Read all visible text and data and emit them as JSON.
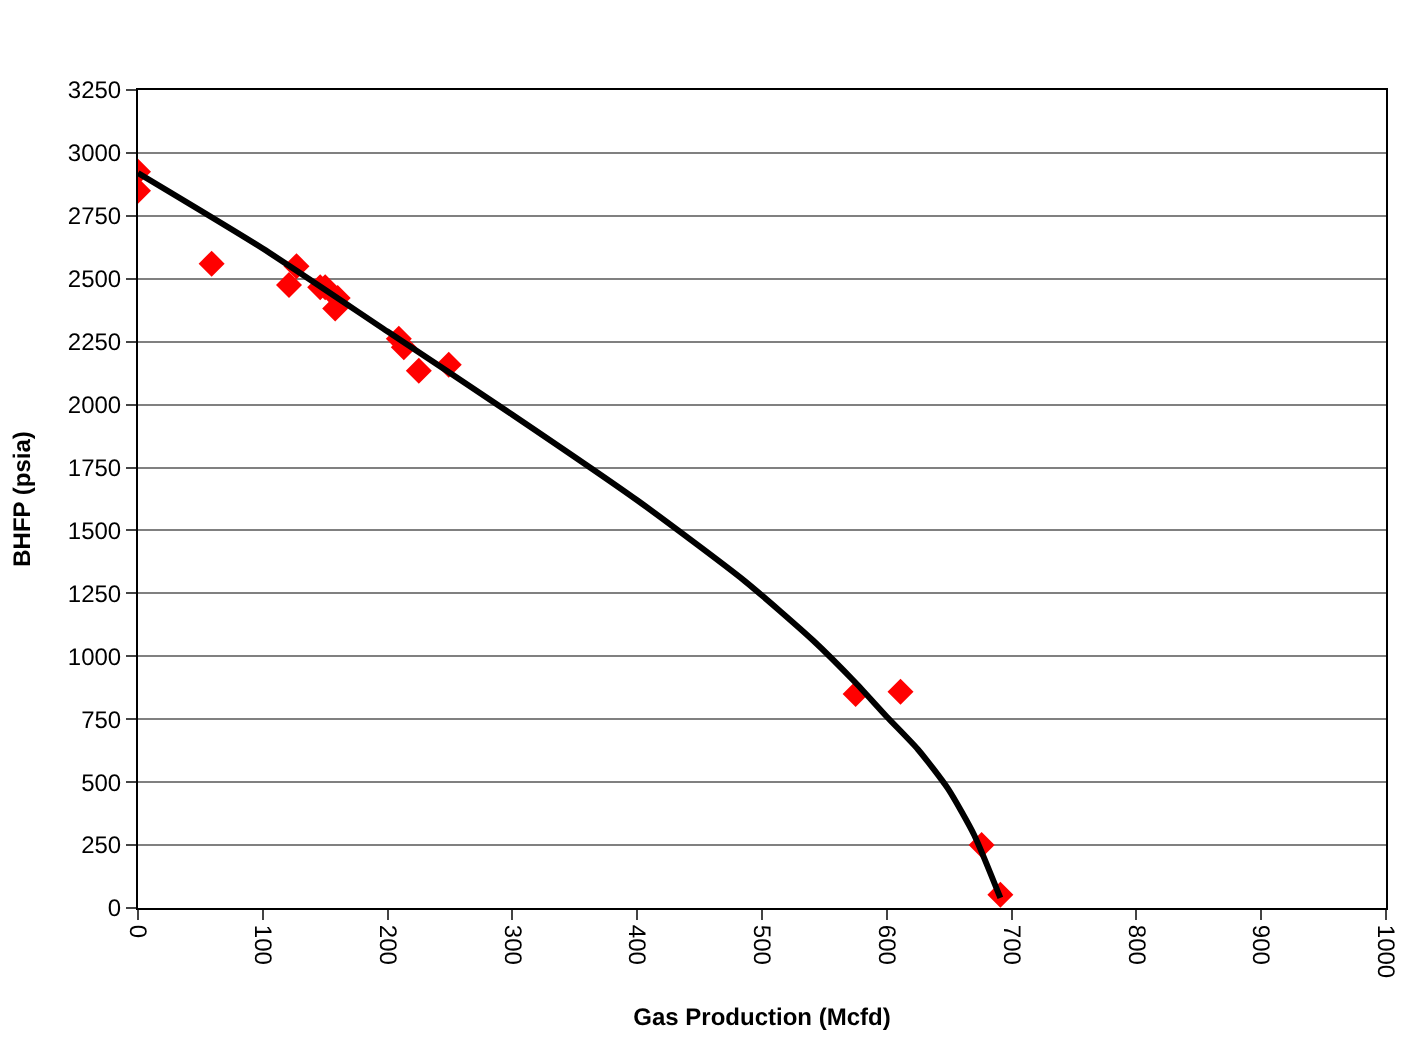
{
  "chart_data": {
    "type": "scatter",
    "xlabel": "Gas Production (Mcfd)",
    "ylabel": "BHFP (psia)",
    "xlim": [
      0,
      1000
    ],
    "xticks": [
      0,
      100,
      200,
      300,
      400,
      500,
      600,
      700,
      800,
      900,
      1000
    ],
    "ylim": [
      0,
      3250
    ],
    "yticks": [
      0,
      250,
      500,
      750,
      1000,
      1250,
      1500,
      1750,
      2000,
      2250,
      2500,
      2750,
      3000,
      3250
    ],
    "grid": "y",
    "legend": false,
    "marker": "diamond",
    "series": [
      {
        "color": "#ff0000",
        "x": [
          0,
          0,
          59,
          121,
          127,
          146,
          150,
          160,
          158,
          209,
          213,
          225,
          249,
          575,
          611,
          676,
          691
        ],
        "values": [
          2925,
          2850,
          2560,
          2475,
          2550,
          2466,
          2466,
          2424,
          2382,
          2262,
          2228,
          2135,
          2158,
          850,
          859,
          250,
          53
        ]
      },
      {
        "type": "line",
        "color": "#000000",
        "marker": "none",
        "x": [
          0,
          100,
          200,
          300,
          400,
          486,
          541,
          575,
          600,
          625,
          649,
          670,
          691
        ],
        "values": [
          2920,
          2620,
          2290,
          1960,
          1620,
          1300,
          1063,
          895,
          760,
          630,
          474,
          290,
          40
        ]
      }
    ]
  }
}
